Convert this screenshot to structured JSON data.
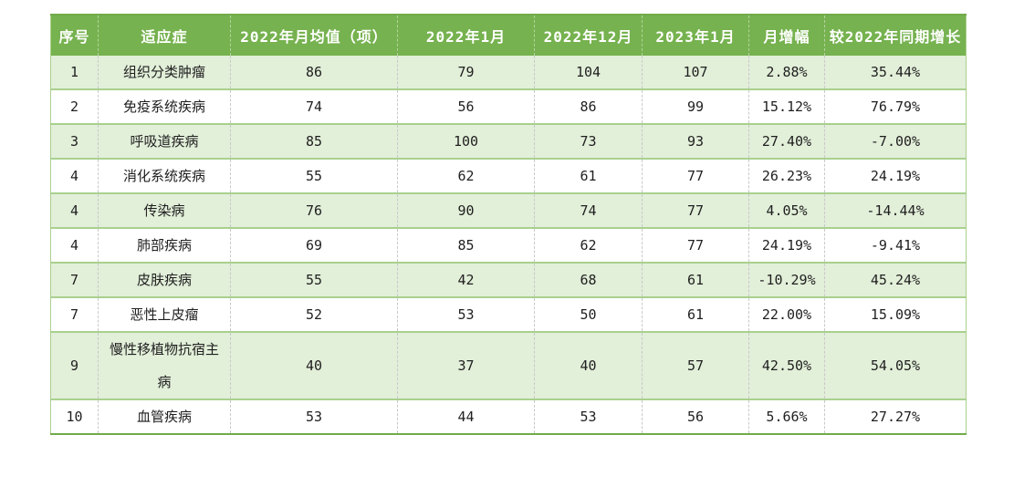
{
  "colors": {
    "header_bg": "#76b24f",
    "header_text": "#ffffff",
    "row_alt_bg": "#e2efd9",
    "row_bg": "#ffffff",
    "body_text": "#1f1f1f",
    "row_border": "#a9d08e",
    "outer_border": "#71ab49",
    "body_col_border": "#c9c9c9"
  },
  "table": {
    "columns": [
      "序号",
      "适应症",
      "2022年月均值（项）",
      "2022年1月",
      "2022年12月",
      "2023年1月",
      "月增幅",
      "较2022年同期增长"
    ],
    "rows": [
      [
        "1",
        "组织分类肿瘤",
        "86",
        "79",
        "104",
        "107",
        "2.88%",
        "35.44%"
      ],
      [
        "2",
        "免疫系统疾病",
        "74",
        "56",
        "86",
        "99",
        "15.12%",
        "76.79%"
      ],
      [
        "3",
        "呼吸道疾病",
        "85",
        "100",
        "73",
        "93",
        "27.40%",
        "-7.00%"
      ],
      [
        "4",
        "消化系统疾病",
        "55",
        "62",
        "61",
        "77",
        "26.23%",
        "24.19%"
      ],
      [
        "4",
        "传染病",
        "76",
        "90",
        "74",
        "77",
        "4.05%",
        "-14.44%"
      ],
      [
        "4",
        "肺部疾病",
        "69",
        "85",
        "62",
        "77",
        "24.19%",
        "-9.41%"
      ],
      [
        "7",
        "皮肤疾病",
        "55",
        "42",
        "68",
        "61",
        "-10.29%",
        "45.24%"
      ],
      [
        "7",
        "恶性上皮瘤",
        "52",
        "53",
        "50",
        "61",
        "22.00%",
        "15.09%"
      ],
      [
        "9",
        "慢性移植物抗宿主病",
        "40",
        "37",
        "40",
        "57",
        "42.50%",
        "54.05%"
      ],
      [
        "10",
        "血管疾病",
        "53",
        "44",
        "53",
        "56",
        "5.66%",
        "27.27%"
      ]
    ]
  }
}
